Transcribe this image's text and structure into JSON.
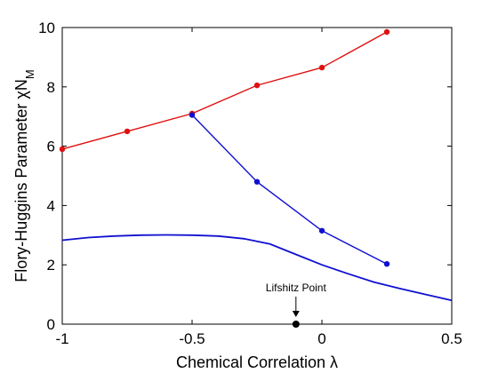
{
  "chart_data": {
    "type": "line",
    "xlabel": "Chemical Correlation λ",
    "ylabel_main": "Flory-Huggins Parameter ",
    "ylabel_chi": "χN",
    "ylabel_sub": "M",
    "xlim": [
      -1,
      0.5
    ],
    "ylim": [
      0,
      10
    ],
    "xticks": [
      "-1",
      "-0.5",
      "0",
      "0.5"
    ],
    "yticks": [
      "0",
      "2",
      "4",
      "6",
      "8",
      "10"
    ],
    "grid": false,
    "series": [
      {
        "color": "#e01010",
        "markers": true,
        "x": [
          -1.0,
          -0.75,
          -0.5,
          -0.25,
          0.0,
          0.25
        ],
        "y": [
          5.9,
          6.5,
          7.1,
          8.05,
          8.65,
          9.85
        ]
      },
      {
        "color": "#1010d0",
        "markers": true,
        "x": [
          -0.5,
          -0.25,
          0.0,
          0.25
        ],
        "y": [
          7.05,
          4.8,
          3.15,
          2.03
        ]
      },
      {
        "color": "#1010d0",
        "markers": false,
        "x": [
          -1.0,
          -0.9,
          -0.8,
          -0.7,
          -0.6,
          -0.5,
          -0.4,
          -0.3,
          -0.2,
          -0.1,
          0.0,
          0.1,
          0.2,
          0.3,
          0.4,
          0.5
        ],
        "y": [
          2.83,
          2.92,
          2.97,
          3.0,
          3.01,
          3.0,
          2.97,
          2.88,
          2.7,
          2.35,
          2.0,
          1.7,
          1.42,
          1.2,
          1.0,
          0.8
        ]
      }
    ],
    "annotation": {
      "text": "Lifshitz Point",
      "x": -0.1,
      "y": 0,
      "marker_color": "#000000"
    }
  }
}
